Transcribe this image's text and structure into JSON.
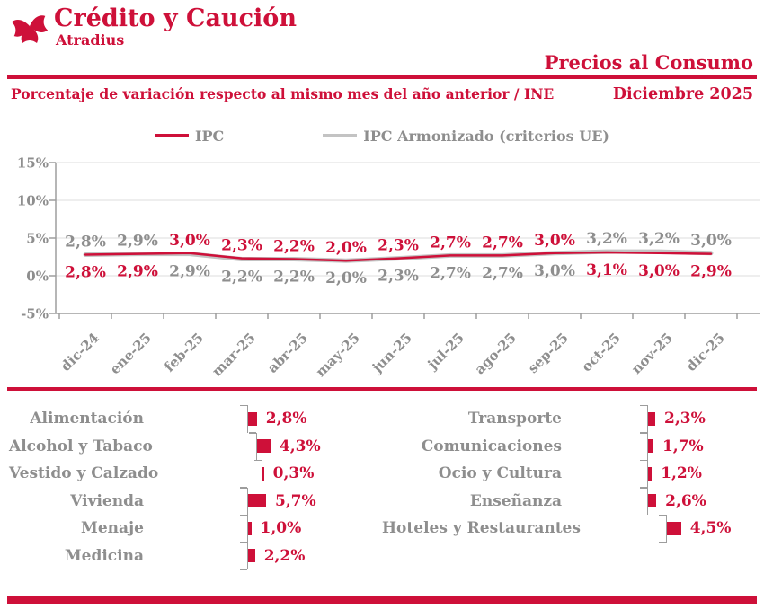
{
  "brand": {
    "name": "Crédito y Caución",
    "subname": "Atradius"
  },
  "header": {
    "title": "Precios al Consumo",
    "subtitle": "Porcentaje de variación respecto al mismo mes del año anterior / INE",
    "date": "Diciembre 2025"
  },
  "colors": {
    "red": "#CE1039",
    "gray_text": "#8E8E8E",
    "gray_line": "#C3C3C3",
    "grid": "#DCDCDC",
    "axis": "#9D9D9D"
  },
  "chart_data": [
    {
      "type": "line",
      "title": "Precios al Consumo - IPC vs IPC Armonizado",
      "x": [
        "dic-24",
        "ene-25",
        "feb-25",
        "mar-25",
        "abr-25",
        "may-25",
        "jun-25",
        "jul-25",
        "ago-25",
        "sep-25",
        "oct-25",
        "nov-25",
        "dic-25"
      ],
      "series": [
        {
          "name": "IPC",
          "color_key": "red",
          "values": [
            2.8,
            2.9,
            3.0,
            2.3,
            2.2,
            2.0,
            2.3,
            2.7,
            2.7,
            3.0,
            3.1,
            3.0,
            2.9
          ]
        },
        {
          "name": "IPC Armonizado (criterios UE)",
          "color_key": "gray",
          "values": [
            2.8,
            2.9,
            2.9,
            2.2,
            2.2,
            2.0,
            2.3,
            2.7,
            2.7,
            3.0,
            3.2,
            3.2,
            3.0
          ]
        }
      ],
      "label_top_series": [
        1,
        1,
        0,
        0,
        0,
        0,
        0,
        0,
        0,
        0,
        1,
        1,
        1
      ],
      "ylim": [
        -5,
        15
      ],
      "yticks": [
        15,
        10,
        5,
        0,
        -5
      ],
      "grid": true,
      "legend_position": "top",
      "value_format": "comma_percent"
    },
    {
      "type": "bar",
      "orientation": "horizontal",
      "unit": "%",
      "columns": [
        {
          "categories": [
            "Alimentación",
            "Alcohol y Tabaco",
            "Vestido y Calzado",
            "Vivienda",
            "Menaje",
            "Medicina"
          ],
          "values": [
            2.8,
            4.3,
            0.3,
            5.7,
            1.0,
            2.2
          ]
        },
        {
          "categories": [
            "Transporte",
            "Comunicaciones",
            "Ocio y Cultura",
            "Enseñanza",
            "Hoteles y Restaurantes"
          ],
          "values": [
            2.3,
            1.7,
            1.2,
            2.6,
            4.5
          ]
        }
      ]
    }
  ]
}
